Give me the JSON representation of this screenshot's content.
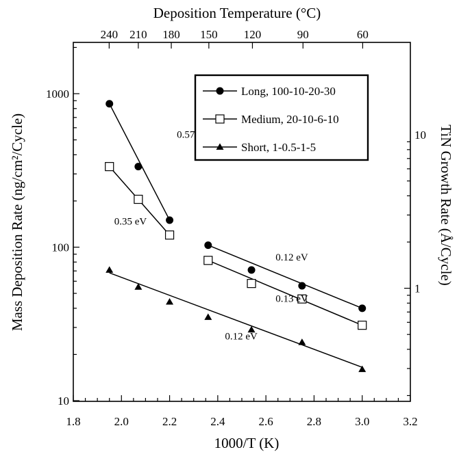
{
  "chart_data": {
    "type": "scatter",
    "title": "",
    "xlabel": "1000/T (K)",
    "ylabel_left": "Mass Deposition Rate (ng/cm²/Cycle)",
    "ylabel_right": "TiN Growth Rate (Å/Cycle)",
    "xlabel_top": "Deposition Temperature (°C)",
    "xlim": [
      1.8,
      3.2
    ],
    "ylim": [
      10,
      2000
    ],
    "y_scale": "log",
    "x_ticks": [
      1.8,
      2.0,
      2.2,
      2.4,
      2.6,
      2.8,
      3.0,
      3.2
    ],
    "x_tick_labels": [
      "1.8",
      "2.0",
      "2.2",
      "2.4",
      "2.6",
      "2.8",
      "3.0",
      "3.2"
    ],
    "y_ticks": [
      10,
      100,
      1000
    ],
    "y_tick_labels": [
      "10",
      "100",
      "1000"
    ],
    "top_ticks": [
      {
        "label": "240",
        "x": 1.949
      },
      {
        "label": "210",
        "x": 2.07
      },
      {
        "label": "180",
        "x": 2.207
      },
      {
        "label": "150",
        "x": 2.363
      },
      {
        "label": "120",
        "x": 2.544
      },
      {
        "label": "90",
        "x": 2.754
      },
      {
        "label": "60",
        "x": 3.002
      }
    ],
    "right_ticks": [
      {
        "label": "1",
        "y": 54
      },
      {
        "label": "10",
        "y": 540
      }
    ],
    "legend_position": "top-right",
    "series": [
      {
        "name": "Long, 100-10-20-30",
        "marker": "filled-circle",
        "points": [
          [
            1.95,
            860
          ],
          [
            2.07,
            335
          ],
          [
            2.2,
            150
          ],
          [
            2.36,
            103
          ],
          [
            2.54,
            71
          ],
          [
            2.75,
            56
          ],
          [
            3.0,
            40
          ]
        ],
        "fits": [
          {
            "x": [
              1.95,
              2.2
            ],
            "y": [
              860,
              150
            ]
          },
          {
            "x": [
              2.36,
              3.0
            ],
            "y": [
              103,
              40
            ]
          }
        ]
      },
      {
        "name": "Medium, 20-10-6-10",
        "marker": "open-square",
        "points": [
          [
            1.95,
            335
          ],
          [
            2.07,
            205
          ],
          [
            2.2,
            120
          ],
          [
            2.36,
            82
          ],
          [
            2.54,
            58
          ],
          [
            2.75,
            46
          ],
          [
            3.0,
            31
          ]
        ],
        "fits": [
          {
            "x": [
              1.95,
              2.2
            ],
            "y": [
              335,
              120
            ]
          },
          {
            "x": [
              2.36,
              3.0
            ],
            "y": [
              82,
              31
            ]
          }
        ]
      },
      {
        "name": "Short, 1-0.5-1-5",
        "marker": "filled-triangle",
        "points": [
          [
            1.95,
            71
          ],
          [
            2.07,
            55
          ],
          [
            2.2,
            44
          ],
          [
            2.36,
            35
          ],
          [
            2.54,
            29
          ],
          [
            2.75,
            24
          ],
          [
            3.0,
            16
          ]
        ],
        "fits": [
          {
            "x": [
              1.95,
              3.0
            ],
            "y": [
              68,
              16.5
            ]
          }
        ]
      }
    ],
    "annotations": [
      {
        "text": "0.57 eV",
        "x": 2.23,
        "y": 515
      },
      {
        "text": "0.35 eV",
        "x": 1.97,
        "y": 140
      },
      {
        "text": "0.12 eV",
        "x": 2.64,
        "y": 82
      },
      {
        "text": "0.13 eV",
        "x": 2.64,
        "y": 44
      },
      {
        "text": "0.12 eV",
        "x": 2.43,
        "y": 25
      }
    ]
  }
}
